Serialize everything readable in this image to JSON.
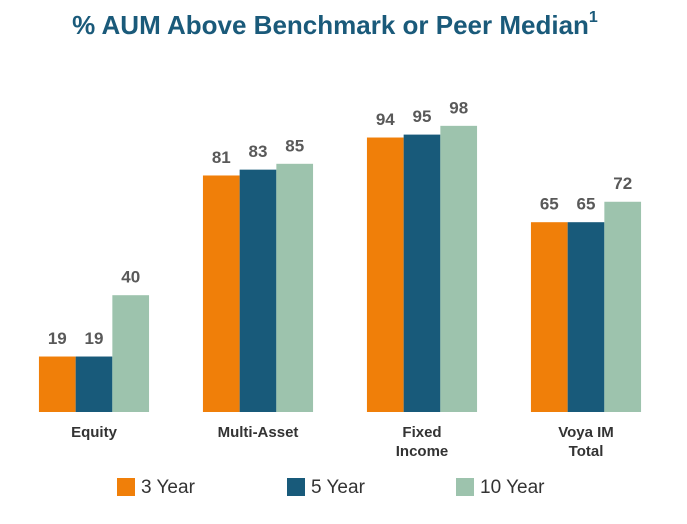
{
  "chart_data": {
    "type": "bar",
    "title": "% AUM Above Benchmark or Peer Median",
    "title_superscript": "1",
    "categories": [
      "Equity",
      "Multi-Asset",
      "Fixed Income",
      "Voya IM Total"
    ],
    "series": [
      {
        "name": "3 Year",
        "color": "#f07f09",
        "values": [
          19,
          81,
          94,
          65
        ]
      },
      {
        "name": "5 Year",
        "color": "#185a7a",
        "values": [
          19,
          83,
          95,
          65
        ]
      },
      {
        "name": "10 Year",
        "color": "#9dc3ad",
        "values": [
          40,
          85,
          98,
          72
        ]
      }
    ],
    "ylim": [
      0,
      100
    ],
    "legend": "bottom"
  }
}
